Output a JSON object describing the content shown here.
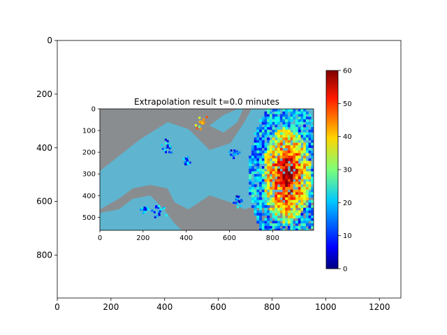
{
  "chart_data": [
    {
      "type": "image-axes",
      "name": "outer-figure-axes",
      "x_range": [
        0,
        1280
      ],
      "y_range": [
        960,
        0
      ],
      "x_ticks": [
        0,
        200,
        400,
        600,
        800,
        1000,
        1200
      ],
      "y_ticks": [
        0,
        200,
        400,
        600,
        800
      ],
      "x_tick_labels": [
        "0",
        "200",
        "400",
        "600",
        "800",
        "1000",
        "1200"
      ],
      "y_tick_labels": [
        "0",
        "200",
        "400",
        "600",
        "800"
      ]
    },
    {
      "type": "heatmap",
      "name": "radar-extrapolation",
      "title": "Extrapolation result t=0.0 minutes",
      "x_range": [
        0,
        990
      ],
      "y_range": [
        560,
        0
      ],
      "x_ticks": [
        0,
        200,
        400,
        600,
        800
      ],
      "y_ticks": [
        0,
        100,
        200,
        300,
        400,
        500
      ],
      "x_tick_labels": [
        "0",
        "200",
        "400",
        "600",
        "800"
      ],
      "y_tick_labels": [
        "0",
        "100",
        "200",
        "300",
        "400",
        "500"
      ],
      "colormap": "jet",
      "description_of_intensity": "high values (~50-60) concentrated on the east side, x 700-990, y 0-560; scattered low/moderate echoes near x 200-550"
    },
    {
      "type": "colorbar",
      "name": "intensity-colorbar",
      "range": [
        0,
        60
      ],
      "ticks": [
        0,
        10,
        20,
        30,
        40,
        50,
        60
      ],
      "tick_labels": [
        "0",
        "10",
        "20",
        "30",
        "40",
        "50",
        "60"
      ]
    }
  ]
}
